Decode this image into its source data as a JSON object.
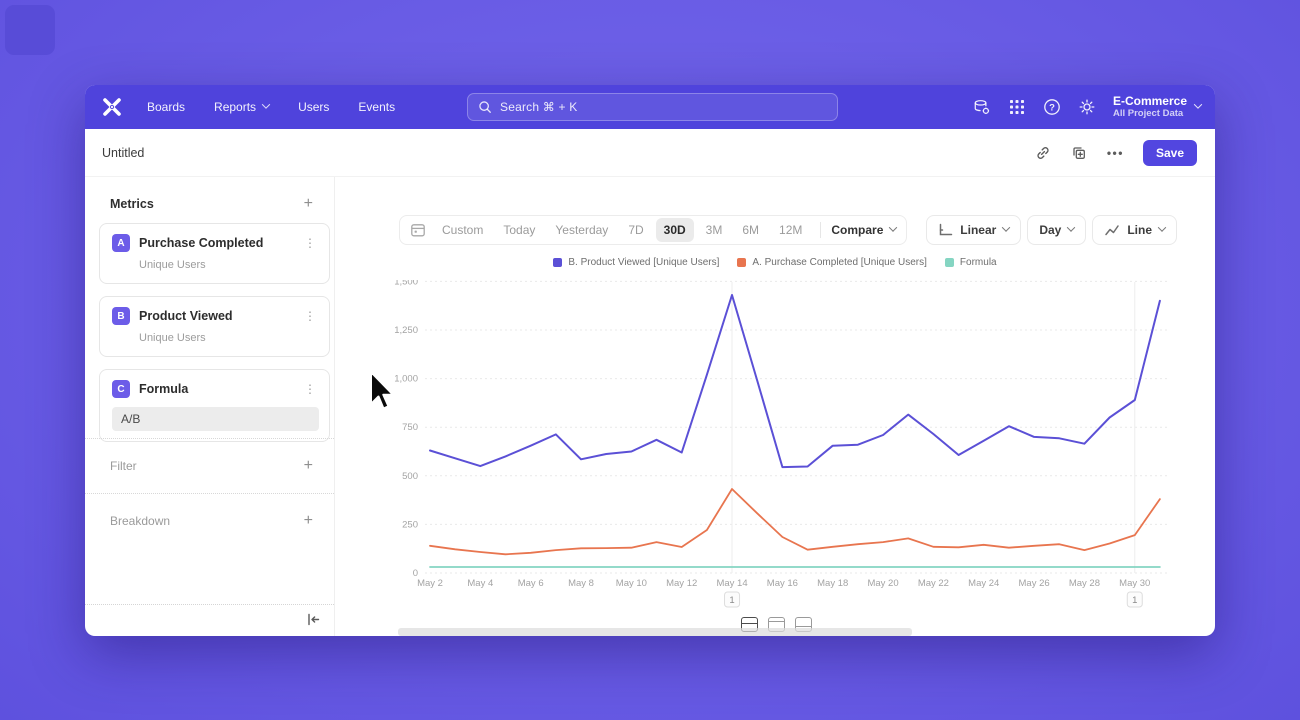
{
  "topnav": {
    "nav_items": [
      "Boards",
      "Reports",
      "Users",
      "Events"
    ],
    "search_placeholder": "Search  ⌘ + K",
    "project": {
      "name": "E-Commerce",
      "subtitle": "All Project Data"
    }
  },
  "title_bar": {
    "title": "Untitled",
    "ellipsis_label": "•••",
    "save_label": "Save"
  },
  "sidebar": {
    "metrics_header": "Metrics",
    "plus_label": "+",
    "kebab_label": "⋮",
    "metrics": [
      {
        "badge": "A",
        "name": "Purchase Completed",
        "sub": "Unique Users"
      },
      {
        "badge": "B",
        "name": "Product Viewed",
        "sub": "Unique Users"
      },
      {
        "badge": "C",
        "name": "Formula",
        "formula_value": "A/B"
      }
    ],
    "sections": [
      {
        "label": "Filter"
      },
      {
        "label": "Breakdown"
      }
    ]
  },
  "controls": {
    "ranges": [
      "Custom",
      "Today",
      "Yesterday",
      "7D",
      "30D",
      "3M",
      "6M",
      "12M"
    ],
    "active_range": "30D",
    "compare_label": "Compare",
    "scale_label": "Linear",
    "interval_label": "Day",
    "chart_type_label": "Line"
  },
  "colors": {
    "header_bg": "#4f43dc",
    "accent": "#5246e0",
    "series_purple": "#5b50d6",
    "series_orange": "#e8754f",
    "series_teal": "#85d5c2",
    "grid": "#e9e9e9"
  },
  "chart_data": {
    "type": "line",
    "title": "",
    "xlabel": "",
    "ylabel": "",
    "ylim": [
      0,
      1500
    ],
    "grid": "horizontal-dashed",
    "legend_position": "top-center",
    "x": [
      "May 2",
      "May 3",
      "May 4",
      "May 5",
      "May 6",
      "May 7",
      "May 8",
      "May 9",
      "May 10",
      "May 11",
      "May 12",
      "May 13",
      "May 14",
      "May 15",
      "May 16",
      "May 17",
      "May 18",
      "May 19",
      "May 20",
      "May 21",
      "May 22",
      "May 23",
      "May 24",
      "May 25",
      "May 26",
      "May 27",
      "May 28",
      "May 29",
      "May 30",
      "May 31"
    ],
    "x_tick_step": 2,
    "y_tick_values": [
      0,
      250,
      500,
      750,
      1000,
      1250,
      1500
    ],
    "y_tick_labels": [
      "0",
      "250",
      "500",
      "750",
      "1,000",
      "1,250",
      "1,500"
    ],
    "annotations": [
      {
        "x": "May 14",
        "x_index": 12,
        "label": "1"
      },
      {
        "x": "May 30",
        "x_index": 28,
        "label": "1"
      }
    ],
    "series": [
      {
        "name": "B. Product Viewed [Unique Users]",
        "color": "#5b50d6",
        "values": [
          630,
          590,
          550,
          600,
          655,
          713,
          585,
          612,
          625,
          685,
          620,
          1020,
          1430,
          990,
          545,
          548,
          655,
          660,
          710,
          815,
          715,
          607,
          680,
          755,
          700,
          693,
          665,
          800,
          890,
          1400
        ]
      },
      {
        "name": "A. Purchase Completed [Unique Users]",
        "color": "#e8754f",
        "values": [
          140,
          122,
          108,
          96,
          104,
          118,
          127,
          128,
          130,
          159,
          134,
          221,
          432,
          307,
          185,
          120,
          135,
          148,
          159,
          178,
          135,
          132,
          145,
          130,
          140,
          148,
          118,
          152,
          195,
          380
        ]
      },
      {
        "name": "Formula",
        "color": "#85d5c2",
        "values": [
          0.2,
          0.2,
          0.2,
          0.2,
          0.2,
          0.2,
          0.2,
          0.2,
          0.2,
          0.2,
          0.2,
          0.2,
          0.2,
          0.2,
          0.2,
          0.2,
          0.2,
          0.2,
          0.2,
          0.2,
          0.2,
          0.2,
          0.2,
          0.2,
          0.2,
          0.2,
          0.2,
          0.2,
          0.2,
          0.2
        ]
      }
    ]
  }
}
